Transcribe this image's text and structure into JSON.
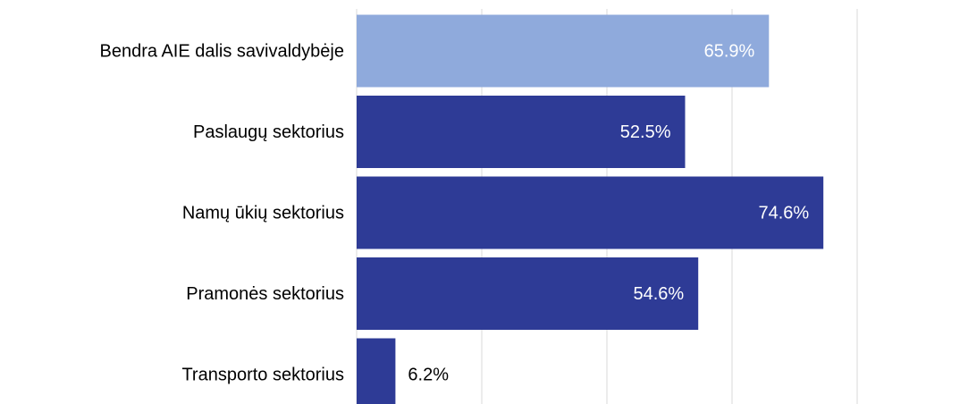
{
  "chart_data": {
    "type": "barh",
    "categories": [
      "Bendra AIE dalis savivaldybėje",
      "Paslaugų sektorius",
      "Namų ūkių sektorius",
      "Pramonės sektorius",
      "Transporto sektorius"
    ],
    "values": [
      65.9,
      52.5,
      74.6,
      54.6,
      6.2
    ],
    "value_labels": [
      "65.9%",
      "52.5%",
      "74.6%",
      "54.6%",
      "6.2%"
    ],
    "colors": [
      "#8faadc",
      "#2e3b96",
      "#2e3b96",
      "#2e3b96",
      "#2e3b96"
    ],
    "xlim": [
      0,
      80
    ],
    "xticks": [
      0,
      20,
      40,
      60,
      80
    ],
    "grid": true
  }
}
